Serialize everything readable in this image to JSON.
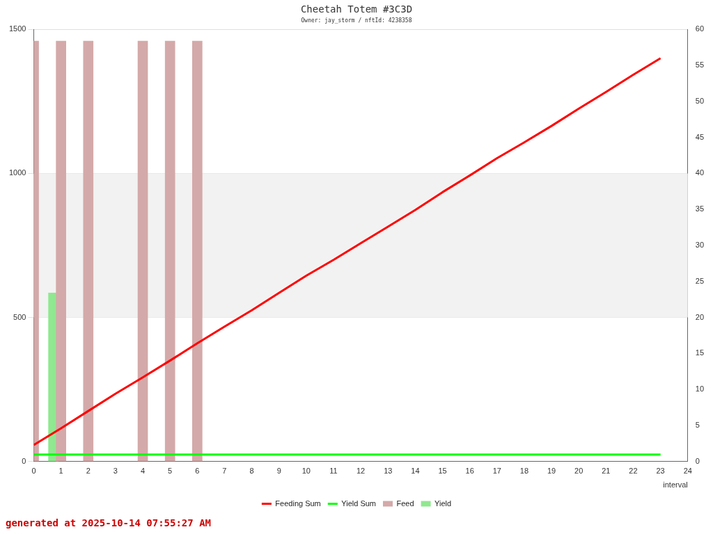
{
  "chart_data": {
    "type": "bar",
    "title": "Cheetah Totem #3C3D",
    "subtitle": "Owner: jay_storm / nftId: 4238358",
    "xlabel": "interval",
    "xlim": [
      0,
      24
    ],
    "xticks": [
      0,
      1,
      2,
      3,
      4,
      5,
      6,
      7,
      8,
      9,
      10,
      11,
      12,
      13,
      14,
      15,
      16,
      17,
      18,
      19,
      20,
      21,
      22,
      23,
      24
    ],
    "ylim": [
      0,
      1500
    ],
    "yticks": [
      0,
      500,
      1000,
      1500
    ],
    "y2lim": [
      0,
      60
    ],
    "y2ticks": [
      0,
      5,
      10,
      15,
      20,
      25,
      30,
      35,
      40,
      45,
      50,
      55,
      60
    ],
    "grid": "y",
    "legend": "bottom",
    "bands": [
      {
        "axis": "y",
        "from": 500,
        "to": 1000,
        "color": "#f2f2f2"
      }
    ],
    "annotations": [
      "generated at 2025-10-14 07:55:27 AM"
    ],
    "series": [
      {
        "name": "Feeding Sum",
        "type": "line",
        "color": "#ff0000",
        "x": [
          0,
          1,
          2,
          3,
          4,
          5,
          6,
          7,
          8,
          9,
          10,
          11,
          12,
          13,
          14,
          15,
          16,
          17,
          18,
          19,
          20,
          21,
          22,
          23
        ],
        "values": [
          57,
          115,
          175,
          235,
          292,
          350,
          410,
          468,
          525,
          585,
          645,
          700,
          758,
          815,
          873,
          935,
          993,
          1053,
          1108,
          1165,
          1225,
          1283,
          1343,
          1400
        ]
      },
      {
        "name": "Yield Sum",
        "type": "line",
        "color": "#00ff00",
        "x": [
          0,
          23
        ],
        "values": [
          24,
          24
        ]
      },
      {
        "name": "Feed",
        "color": "#d4a9a9",
        "x": [
          0.18,
          1.18,
          2.18,
          4.18,
          5.18,
          6.18
        ],
        "values": [
          1460,
          1460,
          1460,
          1460,
          1460,
          1460
        ]
      },
      {
        "name": "Yield",
        "color": "#90e890",
        "x": [
          0.54
        ],
        "values": [
          585
        ]
      }
    ]
  }
}
